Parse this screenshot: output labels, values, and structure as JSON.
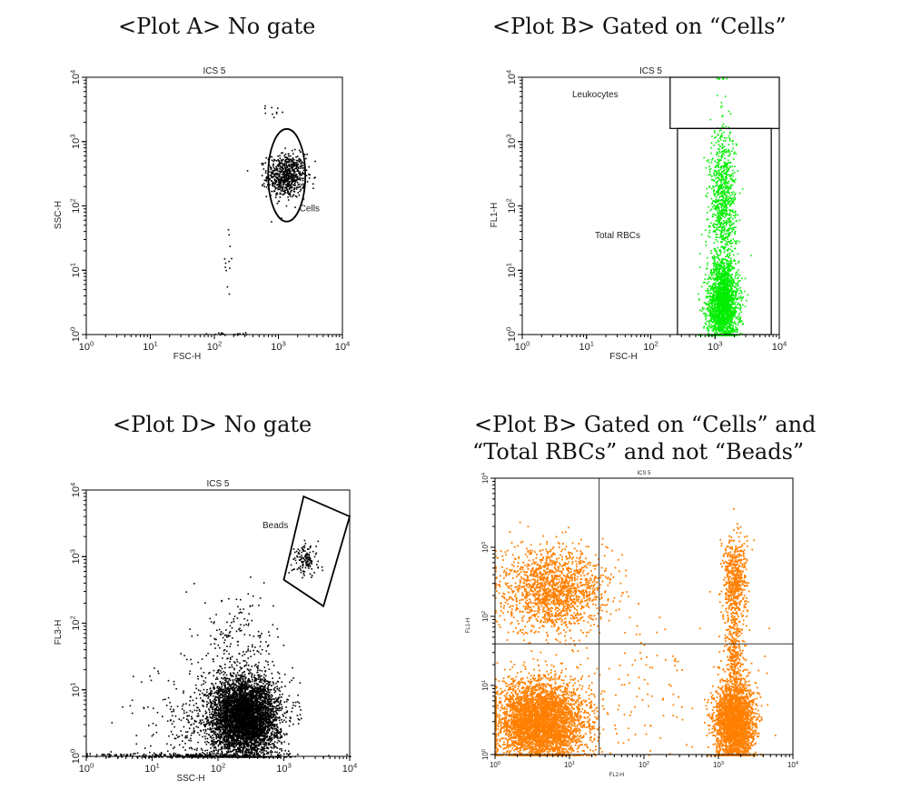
{
  "captions": {
    "a": "<Plot A> No gate",
    "b": "<Plot B> Gated on “Cells”",
    "d": "<Plot D> No gate",
    "e_line1": "<Plot B> Gated on “Cells” and",
    "e_line2": "“Total RBCs” and not “Beads”"
  },
  "colors": {
    "black_dots": "#000000",
    "green_dots": "#00ee00",
    "orange_dots": "#ff7f00"
  },
  "chart_data": [
    {
      "type": "scatter",
      "title": "ICS 5",
      "xlabel": "FSC-H",
      "ylabel": "SSC-H",
      "xscale": "log",
      "yscale": "log",
      "xlim": [
        1,
        10000
      ],
      "ylim": [
        1,
        10000
      ],
      "x_ticks": [
        "10⁰",
        "10¹",
        "10²",
        "10³",
        "10⁴"
      ],
      "y_ticks": [
        "10⁰",
        "10¹",
        "10²",
        "10³",
        "10⁴"
      ],
      "dot_color": "#000000",
      "populations": [
        {
          "center": [
            1300,
            300
          ],
          "spread_decades": [
            0.15,
            0.17
          ],
          "count": 700
        },
        {
          "center": [
            700,
            3000
          ],
          "spread_decades": [
            0.15,
            0.06
          ],
          "count": 10
        },
        {
          "center": [
            160,
            10
          ],
          "spread_decades": [
            0.05,
            0.4
          ],
          "count": 12
        },
        {
          "center": [
            180,
            1.04
          ],
          "spread_decades": [
            0.3,
            0.01
          ],
          "count": 20
        }
      ],
      "gates": [
        {
          "name": "Cells",
          "shape": "ellipse",
          "center": [
            1350,
            300
          ],
          "radius_decades": [
            0.29,
            0.72
          ]
        }
      ],
      "annotations": [
        "Cells"
      ]
    },
    {
      "type": "scatter",
      "title": "ICS 5",
      "xlabel": "FSC-H",
      "ylabel": "FL1-H",
      "xscale": "log",
      "yscale": "log",
      "xlim": [
        1,
        10000
      ],
      "ylim": [
        1,
        10000
      ],
      "x_ticks": [
        "10⁰",
        "10¹",
        "10²",
        "10³",
        "10⁴"
      ],
      "y_ticks": [
        "10⁰",
        "10¹",
        "10²",
        "10³",
        "10⁴"
      ],
      "dot_color": "#00ee00",
      "populations": [
        {
          "center": [
            1300,
            3
          ],
          "spread_decades": [
            0.12,
            0.35
          ],
          "count": 2200
        },
        {
          "center": [
            1300,
            120
          ],
          "spread_decades": [
            0.1,
            0.55
          ],
          "count": 900
        },
        {
          "center": [
            1300,
            9800
          ],
          "spread_decades": [
            0.08,
            0.01
          ],
          "count": 8
        }
      ],
      "gates": [
        {
          "name": "Leukocytes",
          "shape": "rect",
          "x_range": [
            200,
            10000
          ],
          "y_range": [
            1600,
            10000
          ]
        },
        {
          "name": "Total RBCs",
          "shape": "rect",
          "x_range": [
            260,
            7500
          ],
          "y_range": [
            1,
            1600
          ]
        }
      ],
      "annotations": [
        "Leukocytes",
        "Total RBCs"
      ]
    },
    {
      "type": "scatter",
      "title": "ICS 5",
      "xlabel": "SSC-H",
      "ylabel": "FL3-H",
      "xscale": "log",
      "yscale": "log",
      "xlim": [
        1,
        10000
      ],
      "ylim": [
        1,
        10000
      ],
      "x_ticks": [
        "10⁰",
        "10¹",
        "10²",
        "10³",
        "10⁴"
      ],
      "y_ticks": [
        "10⁰",
        "10¹",
        "10²",
        "10³",
        "10⁴"
      ],
      "dot_color": "#000000",
      "populations": [
        {
          "center": [
            250,
            4
          ],
          "spread_decades": [
            0.26,
            0.3
          ],
          "count": 5000
        },
        {
          "center": [
            60,
            3
          ],
          "spread_decades": [
            0.5,
            0.45
          ],
          "count": 350
        },
        {
          "center": [
            200,
            60
          ],
          "spread_decades": [
            0.28,
            0.35
          ],
          "count": 160
        },
        {
          "center": [
            2100,
            950
          ],
          "spread_decades": [
            0.1,
            0.12
          ],
          "count": 140
        },
        {
          "center": [
            40,
            1.05
          ],
          "spread_decades": [
            0.8,
            0.02
          ],
          "count": 250
        }
      ],
      "gates": [
        {
          "name": "Beads",
          "shape": "polygon",
          "vertices": [
            [
              1000,
              450
            ],
            [
              2000,
              8000
            ],
            [
              10000,
              4000
            ],
            [
              4000,
              180
            ]
          ]
        }
      ],
      "annotations": [
        "Beads"
      ]
    },
    {
      "type": "scatter",
      "title": "ICS 5",
      "xlabel": "FL2-H",
      "ylabel": "FL1-H",
      "xscale": "log",
      "yscale": "log",
      "xlim": [
        1,
        10000
      ],
      "ylim": [
        1,
        10000
      ],
      "x_ticks": [
        "10⁰",
        "10¹",
        "10²",
        "10³",
        "10⁴"
      ],
      "y_ticks": [
        "10⁰",
        "10¹",
        "10²",
        "10³",
        "10⁴"
      ],
      "dot_color": "#ff7f00",
      "quadrant_lines": {
        "x": 25,
        "y": 40
      },
      "populations": [
        {
          "center": [
            4,
            3
          ],
          "spread_decades": [
            0.3,
            0.3
          ],
          "count": 4200
        },
        {
          "center": [
            6,
            250
          ],
          "spread_decades": [
            0.35,
            0.3
          ],
          "count": 1600
        },
        {
          "center": [
            1600,
            3
          ],
          "spread_decades": [
            0.13,
            0.3
          ],
          "count": 2600
        },
        {
          "center": [
            1600,
            300
          ],
          "spread_decades": [
            0.08,
            0.35
          ],
          "count": 600
        },
        {
          "center": [
            1600,
            30
          ],
          "spread_decades": [
            0.06,
            0.25
          ],
          "count": 250
        },
        {
          "center": [
            120,
            8
          ],
          "spread_decades": [
            0.6,
            0.5
          ],
          "count": 120
        }
      ],
      "annotations": []
    }
  ]
}
